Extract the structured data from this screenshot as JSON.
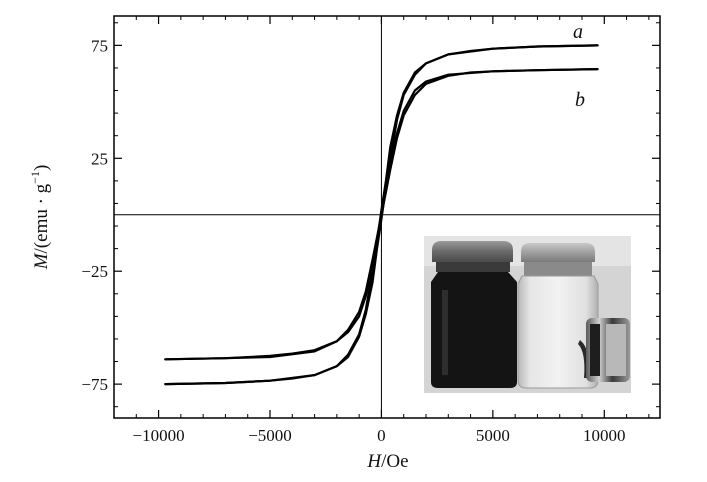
{
  "chart_data": {
    "type": "line",
    "title": "",
    "xlabel": {
      "var": "H",
      "unit": "/Oe"
    },
    "ylabel": {
      "var": "M",
      "unit": "/(emu · g",
      "exp": "−1",
      "close": ")"
    },
    "xlim": [
      -12000,
      12500
    ],
    "ylim": [
      -90,
      88
    ],
    "xticks": [
      -10000,
      -5000,
      0,
      5000,
      10000
    ],
    "xtick_labels": [
      "−10000",
      "−5000",
      "0",
      "5000",
      "10000"
    ],
    "yticks": [
      -75,
      -25,
      25,
      75
    ],
    "ytick_labels": [
      "−75",
      "−25",
      "25",
      "75"
    ],
    "series": [
      {
        "name": "a",
        "color": "#000000",
        "upper": {
          "x": [
            -9700,
            -7000,
            -5000,
            -4000,
            -3000,
            -2000,
            -1500,
            -1000,
            -700,
            -400,
            -200,
            0,
            200,
            400,
            700,
            1000,
            1500,
            2000,
            3000,
            5000,
            7000,
            9700
          ],
          "y": [
            -75,
            -74.5,
            -73.5,
            -72.5,
            -71,
            -67,
            -62,
            -53,
            -42,
            -25,
            -12,
            2,
            15,
            30,
            44,
            54,
            63,
            67,
            71,
            73.5,
            74.5,
            75
          ]
        },
        "lower": {
          "x": [
            -9700,
            -7000,
            -5000,
            -3000,
            -2000,
            -1500,
            -1000,
            -700,
            -400,
            -200,
            0,
            200,
            400,
            700,
            1000,
            1500,
            2000,
            3000,
            4000,
            5000,
            7000,
            9700
          ],
          "y": [
            -75,
            -74.5,
            -73.5,
            -71,
            -67,
            -63,
            -54,
            -44,
            -30,
            -15,
            -2,
            12,
            25,
            42,
            53,
            62,
            67,
            71,
            72.5,
            73.5,
            74.5,
            75
          ]
        }
      },
      {
        "name": "b",
        "color": "#000000",
        "upper": {
          "x": [
            -9700,
            -7000,
            -5000,
            -4000,
            -3000,
            -2000,
            -1500,
            -1000,
            -700,
            -400,
            -200,
            0,
            200,
            400,
            700,
            1000,
            1500,
            2000,
            3000,
            5000,
            7000,
            9700
          ],
          "y": [
            -64,
            -63.5,
            -62.5,
            -61.5,
            -60,
            -56,
            -51,
            -43,
            -34,
            -20,
            -10,
            0,
            11,
            23,
            36,
            46,
            55,
            59,
            62,
            63.5,
            64,
            64.5
          ]
        },
        "lower": {
          "x": [
            -9700,
            -7000,
            -5000,
            -3000,
            -2000,
            -1500,
            -1000,
            -700,
            -400,
            -200,
            0,
            200,
            400,
            700,
            1000,
            1500,
            2000,
            3000,
            4000,
            5000,
            7000,
            9700
          ],
          "y": [
            -64,
            -63.5,
            -63,
            -60.5,
            -56,
            -52,
            -45,
            -36,
            -23,
            -11,
            0,
            10,
            20,
            34,
            44,
            53,
            58,
            61.5,
            63,
            63.5,
            64,
            64.5
          ]
        }
      }
    ],
    "crosshair": {
      "x": 0,
      "y": 0
    },
    "inset": {
      "type": "photo",
      "content": "vials"
    }
  }
}
